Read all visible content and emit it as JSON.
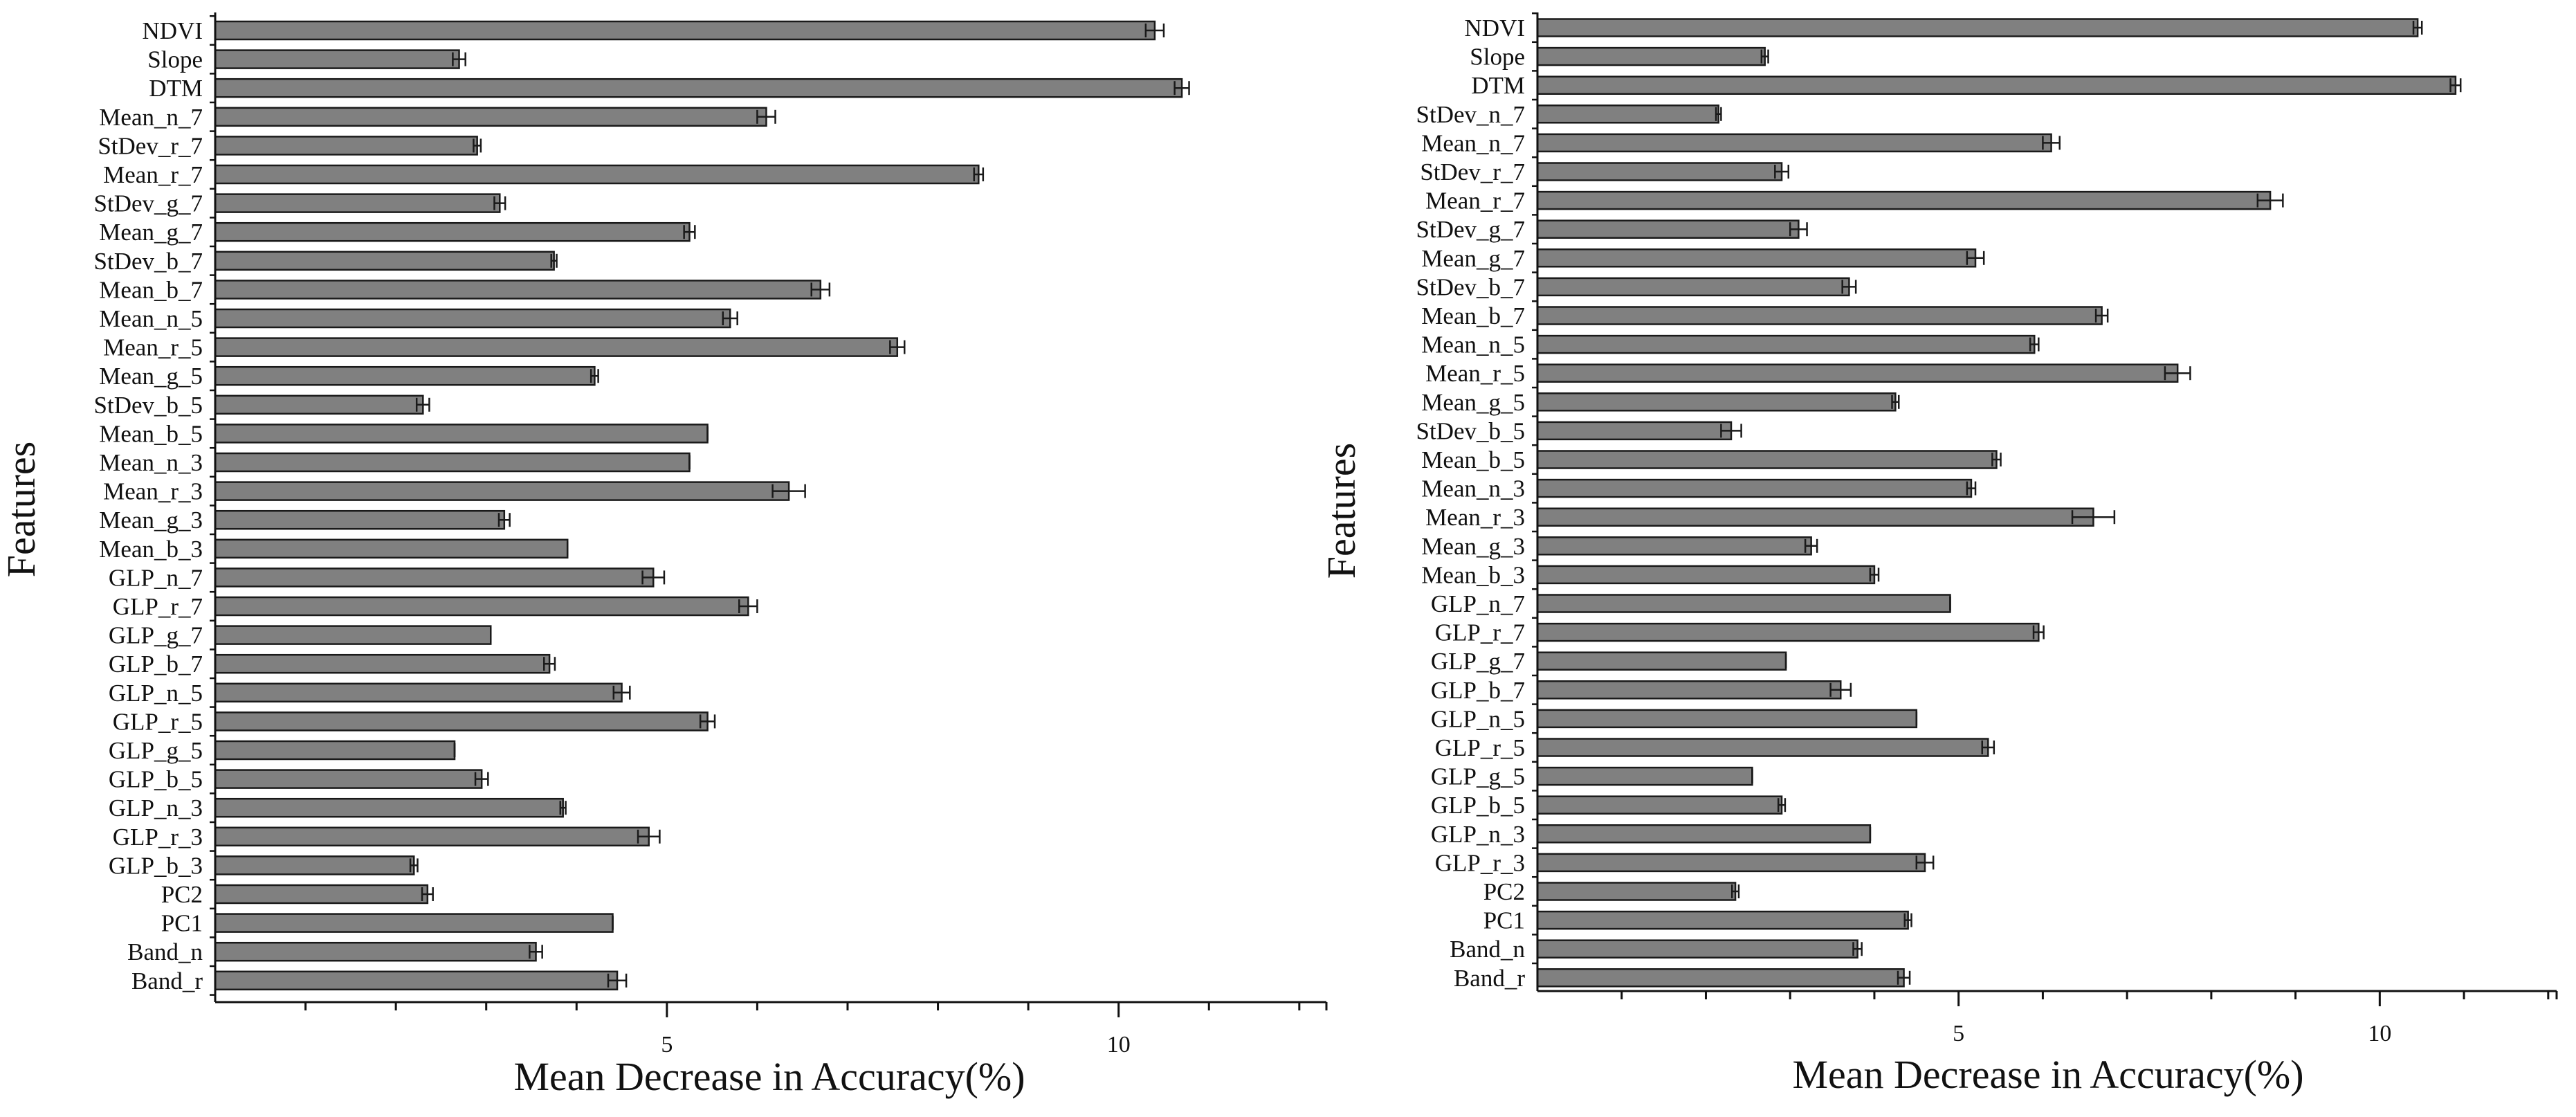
{
  "chart_data": [
    {
      "type": "bar",
      "orientation": "horizontal",
      "title": "",
      "xlabel": "Mean Decrease in Accuracy(%)",
      "ylabel": "Features",
      "xlim": [
        0,
        12.3
      ],
      "xticks": [
        5,
        10
      ],
      "xtick_labels": [
        "5",
        "10"
      ],
      "grid": false,
      "colors": {
        "bar": "#808080",
        "edge": "#1a1a1a"
      },
      "categories": [
        "NDVI",
        "Slope",
        "DTM",
        "Mean_n_7",
        "StDev_r_7",
        "Mean_r_7",
        "StDev_g_7",
        "Mean_g_7",
        "StDev_b_7",
        "Mean_b_7",
        "Mean_n_5",
        "Mean_r_5",
        "Mean_g_5",
        "StDev_b_5",
        "Mean_b_5",
        "Mean_n_3",
        "Mean_r_3",
        "Mean_g_3",
        "Mean_b_3",
        "GLP_n_7",
        "GLP_r_7",
        "GLP_g_7",
        "GLP_b_7",
        "GLP_n_5",
        "GLP_r_5",
        "GLP_g_5",
        "GLP_b_5",
        "GLP_n_3",
        "GLP_r_3",
        "GLP_b_3",
        "PC2",
        "PC1",
        "Band_n",
        "Band_r"
      ],
      "values": [
        10.4,
        2.7,
        10.7,
        6.1,
        2.9,
        8.45,
        3.15,
        5.25,
        3.75,
        6.7,
        5.7,
        7.55,
        4.2,
        2.3,
        5.45,
        5.25,
        6.35,
        3.2,
        3.9,
        4.85,
        5.9,
        3.05,
        3.7,
        4.5,
        5.45,
        2.65,
        2.95,
        3.85,
        4.8,
        2.2,
        2.35,
        4.4,
        3.55,
        4.45
      ],
      "errors": [
        0.1,
        0.07,
        0.08,
        0.1,
        0.04,
        0.05,
        0.06,
        0.06,
        0.03,
        0.1,
        0.08,
        0.08,
        0.04,
        0.07,
        0.0,
        0.0,
        0.18,
        0.06,
        0.0,
        0.12,
        0.1,
        0.0,
        0.06,
        0.09,
        0.08,
        0.0,
        0.07,
        0.03,
        0.12,
        0.04,
        0.06,
        0.0,
        0.07,
        0.1
      ]
    },
    {
      "type": "bar",
      "orientation": "horizontal",
      "title": "",
      "xlabel": "Mean Decrease in Accuracy(%)",
      "ylabel": "Features",
      "xlim": [
        0,
        12.1
      ],
      "xticks": [
        5,
        10
      ],
      "xtick_labels": [
        "5",
        "10"
      ],
      "grid": false,
      "colors": {
        "bar": "#808080",
        "edge": "#1a1a1a"
      },
      "categories": [
        "NDVI",
        "Slope",
        "DTM",
        "StDev_n_7",
        "Mean_n_7",
        "StDev_r_7",
        "Mean_r_7",
        "StDev_g_7",
        "Mean_g_7",
        "StDev_b_7",
        "Mean_b_7",
        "Mean_n_5",
        "Mean_r_5",
        "Mean_g_5",
        "StDev_b_5",
        "Mean_b_5",
        "Mean_n_3",
        "Mean_r_3",
        "Mean_g_3",
        "Mean_b_3",
        "GLP_n_7",
        "GLP_r_7",
        "GLP_g_7",
        "GLP_b_7",
        "GLP_n_5",
        "GLP_r_5",
        "GLP_g_5",
        "GLP_b_5",
        "GLP_n_3",
        "GLP_r_3",
        "PC2",
        "PC1",
        "Band_n",
        "Band_r"
      ],
      "values": [
        10.45,
        2.7,
        10.9,
        2.15,
        6.1,
        2.9,
        8.7,
        3.1,
        5.2,
        3.7,
        6.7,
        5.9,
        7.6,
        4.25,
        2.3,
        5.45,
        5.15,
        6.6,
        3.25,
        4.0,
        4.9,
        5.95,
        2.95,
        3.6,
        4.5,
        5.35,
        2.55,
        2.9,
        3.95,
        4.6,
        2.35,
        4.4,
        3.8,
        4.35
      ],
      "errors": [
        0.05,
        0.04,
        0.06,
        0.03,
        0.1,
        0.08,
        0.15,
        0.1,
        0.1,
        0.08,
        0.07,
        0.05,
        0.15,
        0.04,
        0.12,
        0.05,
        0.05,
        0.25,
        0.07,
        0.05,
        0.0,
        0.06,
        0.0,
        0.12,
        0.0,
        0.07,
        0.0,
        0.04,
        0.0,
        0.1,
        0.04,
        0.04,
        0.05,
        0.07
      ]
    }
  ]
}
